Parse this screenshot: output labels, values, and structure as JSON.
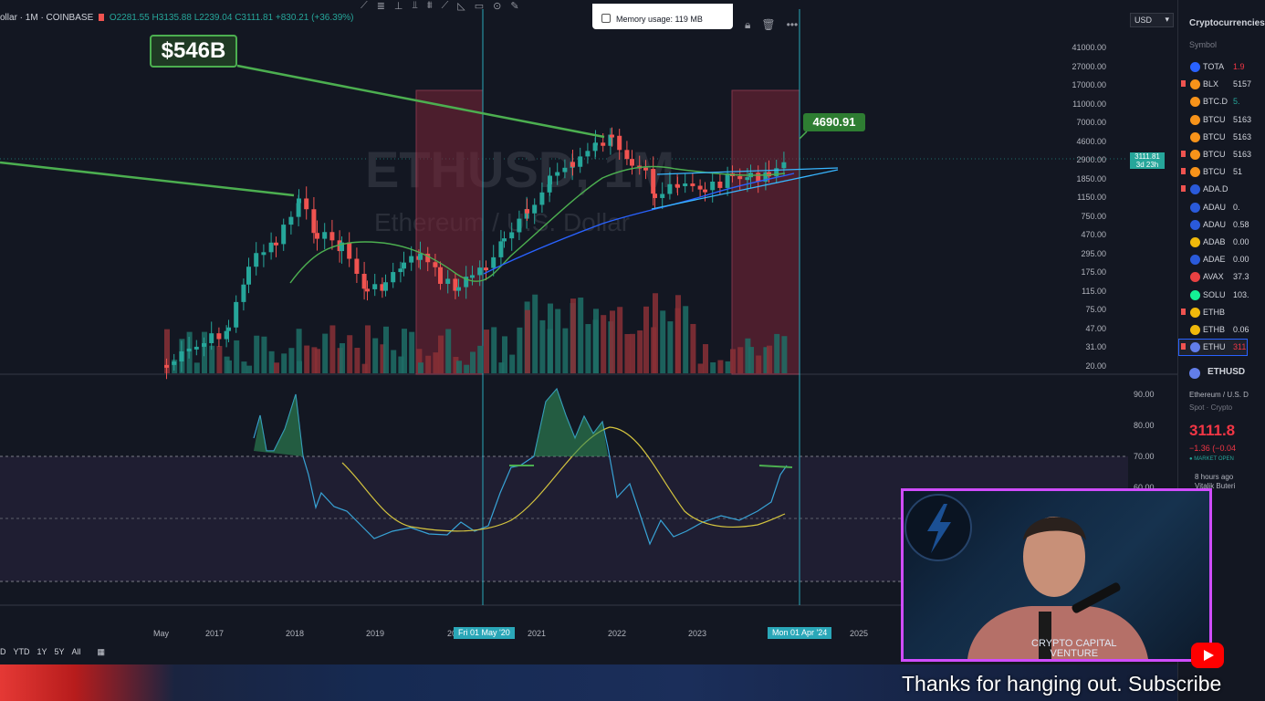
{
  "legend": {
    "symbol": "ollar · 1M · COINBASE",
    "open": "O2281.55",
    "high": "H3135.88",
    "low": "L2239.04",
    "close": "C3111.81",
    "change": "+830.21 (+36.39%)"
  },
  "memory": {
    "label": "Memory usage: 119 MB"
  },
  "currency_select": "USD",
  "watermark": {
    "symbol": "ETHUSD, 1M",
    "name": "Ethereum / U.S. Dollar"
  },
  "price_axis": [
    "41000.00",
    "27000.00",
    "17000.00",
    "11000.00",
    "7000.00",
    "4600.00",
    "2900.00",
    "1850.00",
    "1150.00",
    "750.00",
    "470.00",
    "295.00",
    "175.00",
    "115.00",
    "75.00",
    "47.00",
    "31.00",
    "20.00"
  ],
  "last_price_tag": {
    "price": "3111.81",
    "countdown": "3d 23h"
  },
  "osc_axis": [
    "90.00",
    "80.00",
    "70.00",
    "60.00"
  ],
  "annotations": {
    "market_cap": "$546B",
    "target": "4690.91"
  },
  "timeline": {
    "labels": [
      "May",
      "2017",
      "2018",
      "2019",
      "20",
      "2021",
      "2022",
      "2023",
      "2025"
    ],
    "pill_left": "Fri 01 May '20",
    "pill_right": "Mon 01 Apr '24"
  },
  "range_buttons": [
    "D",
    "YTD",
    "1Y",
    "5Y",
    "All"
  ],
  "sidebar": {
    "title": "Cryptocurrencies",
    "symbol_header": "Symbol",
    "watchlist": [
      {
        "sym": "TOTA",
        "val": "1.9",
        "color": "#2962ff",
        "flag": false,
        "val_color": "#f23645"
      },
      {
        "sym": "BLX",
        "val": "5157",
        "color": "#f7931a",
        "flag": true,
        "val_color": "#d1d4dc"
      },
      {
        "sym": "BTC.D",
        "val": "5.",
        "color": "#f7931a",
        "flag": false,
        "val_color": "#26a69a"
      },
      {
        "sym": "BTCU",
        "val": "5163",
        "color": "#f7931a",
        "flag": false,
        "val_color": "#d1d4dc"
      },
      {
        "sym": "BTCU",
        "val": "5163",
        "color": "#f7931a",
        "flag": false,
        "val_color": "#d1d4dc"
      },
      {
        "sym": "BTCU",
        "val": "5163",
        "color": "#f7931a",
        "flag": true,
        "val_color": "#d1d4dc"
      },
      {
        "sym": "BTCU",
        "val": "51",
        "color": "#f7931a",
        "flag": true,
        "val_color": "#d1d4dc"
      },
      {
        "sym": "ADA.D",
        "val": "",
        "color": "#2a5ada",
        "flag": true,
        "val_color": "#d1d4dc"
      },
      {
        "sym": "ADAU",
        "val": "0.",
        "color": "#2a5ada",
        "flag": false,
        "val_color": "#d1d4dc"
      },
      {
        "sym": "ADAU",
        "val": "0.58",
        "color": "#2a5ada",
        "flag": false,
        "val_color": "#d1d4dc"
      },
      {
        "sym": "ADAB",
        "val": "0.00",
        "color": "#f0b90b",
        "flag": false,
        "val_color": "#d1d4dc"
      },
      {
        "sym": "ADAE",
        "val": "0.00",
        "color": "#2a5ada",
        "flag": false,
        "val_color": "#d1d4dc"
      },
      {
        "sym": "AVAX",
        "val": "37.3",
        "color": "#e84142",
        "flag": false,
        "val_color": "#d1d4dc"
      },
      {
        "sym": "SOLU",
        "val": "103.",
        "color": "#14f195",
        "flag": false,
        "val_color": "#d1d4dc"
      },
      {
        "sym": "ETHB",
        "val": "",
        "color": "#f0b90b",
        "flag": true,
        "val_color": "#d1d4dc"
      },
      {
        "sym": "ETHB",
        "val": "0.06",
        "color": "#f0b90b",
        "flag": false,
        "val_color": "#d1d4dc"
      },
      {
        "sym": "ETHU",
        "val": "311",
        "color": "#627eea",
        "flag": true,
        "val_color": "#f23645",
        "selected": true
      }
    ],
    "detail": {
      "symbol": "ETHUSD",
      "name": "Ethereum / U.S. D",
      "category": "Spot · Crypto",
      "price": "3111.8",
      "change": "−1.36 (−0.04",
      "market": "● MARKET OPEN",
      "news_time": "8 hours ago",
      "news_author": "Vitalik Buteri"
    }
  },
  "webcam": {
    "brand_line1": "CRYPTO CAPITAL",
    "brand_line2": "VENTURE"
  },
  "caption": "Thanks for hanging out. Subscribe"
}
